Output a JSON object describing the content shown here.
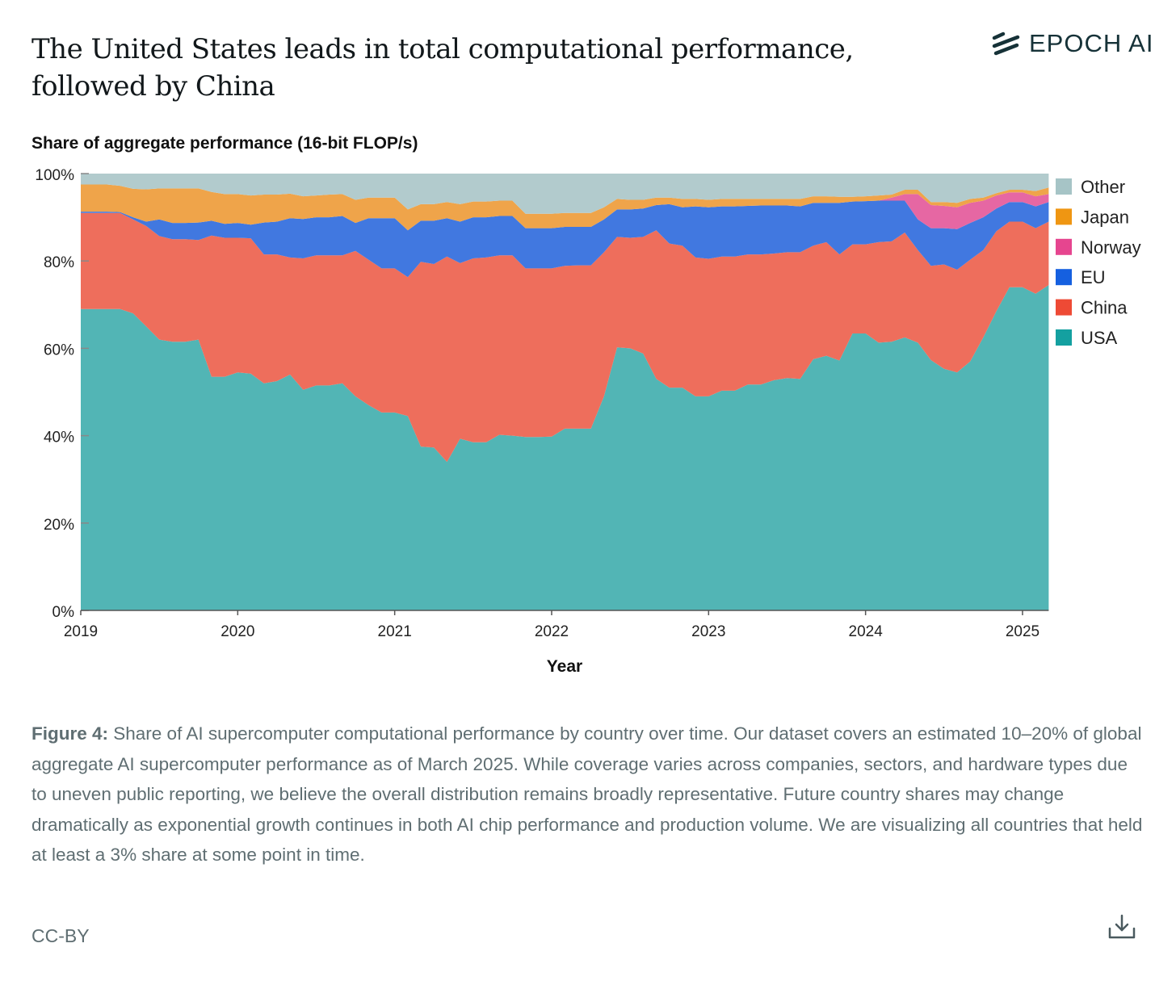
{
  "header": {
    "title": "The United States leads in total computational performance, followed by China",
    "logo_text": "EPOCH AI"
  },
  "caption": {
    "label": "Figure 4:",
    "text": " Share of AI supercomputer computational performance by country over time. Our dataset covers an estimated 10–20% of global aggregate AI supercomputer performance as of March 2025. While coverage varies across companies, sectors, and hardware types due to uneven public reporting, we believe the overall distribution remains broadly representative. Future country shares may change dramatically as exponential growth continues in both AI chip performance and production volume. We are visualizing all countries that held at least a 3% share at some point in time."
  },
  "footer": {
    "license": "CC-BY",
    "download_icon": "download-icon"
  },
  "chart_data": {
    "type": "area",
    "stacked": true,
    "title": "Share of aggregate performance (16-bit FLOP/s)",
    "xlabel": "Year",
    "ylabel": "Share of aggregate performance (16-bit FLOP/s)",
    "x_start": "2019-01",
    "x_step": "monthly",
    "xlim": [
      2019,
      2025.17
    ],
    "ylim": [
      0,
      100
    ],
    "x_ticks": [
      "2019",
      "2020",
      "2021",
      "2022",
      "2023",
      "2024",
      "2025"
    ],
    "y_ticks": [
      "0%",
      "20%",
      "40%",
      "60%",
      "80%",
      "100%"
    ],
    "legend_position": "right",
    "grid": false,
    "series": [
      {
        "name": "USA",
        "color": "#52b5b5",
        "legend_color": "#14a0a0",
        "values": [
          69,
          69,
          69,
          69,
          68,
          65,
          62,
          61.5,
          61.5,
          62,
          53.5,
          53.5,
          54.5,
          54.2,
          52,
          52.5,
          54,
          50.5,
          51.5,
          51.5,
          52,
          49,
          47,
          45.3,
          45.3,
          44.5,
          37.5,
          37.3,
          34,
          39.3,
          38.5,
          38.5,
          40.2,
          40,
          39.7,
          39.7,
          39.8,
          41.6,
          41.6,
          41.6,
          49,
          60.2,
          60,
          58.8,
          53,
          51,
          51,
          49,
          49,
          50.3,
          50.3,
          51.7,
          51.7,
          52.7,
          53.2,
          53,
          57.5,
          58.3,
          57.2,
          63.4,
          63.4,
          61.3,
          61.5,
          62.5,
          61.3,
          57.3,
          55.3,
          54.5,
          57,
          62.5,
          68.5,
          74,
          74,
          72.5,
          74.5
        ]
      },
      {
        "name": "China",
        "color": "#ee6e5c",
        "legend_color": "#ee4a35",
        "values": [
          22,
          22,
          22,
          22,
          21.5,
          23,
          23.7,
          23.5,
          23.5,
          22.8,
          32.3,
          31.8,
          30.8,
          31,
          29.5,
          29,
          26.8,
          30.1,
          29.8,
          29.8,
          29.3,
          33.3,
          33.3,
          33,
          33,
          31.8,
          42.3,
          42,
          47,
          40.2,
          42.1,
          42.3,
          41.1,
          41.3,
          38.6,
          38.6,
          38.5,
          37.3,
          37.4,
          37.4,
          33,
          25.3,
          25.3,
          26.7,
          34,
          33,
          32.5,
          31.8,
          31.5,
          30.7,
          30.7,
          29.8,
          29.8,
          29,
          28.8,
          29,
          26,
          26,
          24.3,
          20.4,
          20.4,
          23,
          23,
          24,
          21.2,
          21.6,
          23.9,
          23.5,
          23.3,
          20,
          18.3,
          15,
          15,
          15,
          14.5
        ]
      },
      {
        "name": "EU",
        "color": "#4178e0",
        "legend_color": "#1560e0",
        "values": [
          0.3,
          0.3,
          0.3,
          0.2,
          0.5,
          1,
          3.8,
          3.7,
          3.7,
          4,
          3.4,
          3.2,
          3.4,
          3.1,
          7.3,
          7.5,
          9,
          9,
          8.7,
          8.7,
          9,
          6.4,
          9.5,
          11.5,
          11.5,
          10.7,
          9.4,
          9.9,
          8.8,
          9.5,
          9.4,
          9.2,
          9,
          9,
          9.2,
          9.2,
          9.2,
          8.9,
          8.8,
          8.8,
          7.5,
          6.3,
          6.5,
          6.5,
          5.8,
          9,
          8.8,
          11.7,
          11.8,
          11.5,
          11.5,
          11.1,
          11.2,
          11,
          10.7,
          10.5,
          9.8,
          9,
          11.8,
          9.8,
          9.9,
          9.5,
          9.3,
          7.3,
          7,
          8.6,
          8.3,
          9.3,
          8.4,
          7.5,
          5.2,
          4.5,
          4.5,
          5,
          4.5
        ]
      },
      {
        "name": "Norway",
        "color": "#e667a3",
        "legend_color": "#e6458f",
        "values": [
          0,
          0,
          0,
          0,
          0,
          0,
          0,
          0,
          0,
          0,
          0,
          0,
          0,
          0,
          0,
          0,
          0,
          0,
          0,
          0,
          0,
          0,
          0,
          0,
          0,
          0,
          0,
          0,
          0,
          0,
          0,
          0,
          0,
          0,
          0,
          0,
          0,
          0,
          0,
          0,
          0,
          0,
          0,
          0,
          0,
          0,
          0,
          0,
          0,
          0,
          0,
          0,
          0,
          0,
          0,
          0,
          0,
          0,
          0,
          0,
          0,
          0,
          0.7,
          1.5,
          5.8,
          5.3,
          5.1,
          5,
          4.6,
          3.8,
          3,
          2.2,
          2.2,
          2.3,
          1.8
        ]
      },
      {
        "name": "Japan",
        "color": "#efa44a",
        "legend_color": "#ef9612",
        "values": [
          6.2,
          6.2,
          6.2,
          6,
          6.5,
          7.4,
          7.1,
          7.9,
          7.9,
          7.8,
          6.6,
          6.8,
          6.6,
          6.7,
          6.4,
          6.2,
          5.6,
          5.2,
          5,
          5.2,
          5,
          5.3,
          4.7,
          4.7,
          4.7,
          4.8,
          3.8,
          3.8,
          3.7,
          4,
          3.6,
          3.6,
          3.5,
          3.5,
          3.3,
          3.3,
          3.3,
          3.2,
          3.2,
          3.2,
          2.8,
          2.4,
          2.2,
          2,
          1.7,
          1.5,
          1.9,
          1.7,
          1.7,
          1.7,
          1.7,
          1.6,
          1.5,
          1.5,
          1.5,
          1.7,
          1.5,
          1.5,
          1.4,
          1.1,
          1.1,
          1.2,
          0.7,
          1,
          1,
          0.7,
          0.9,
          1,
          0.9,
          0.7,
          0.5,
          0.6,
          0.6,
          1.2,
          1.5
        ]
      },
      {
        "name": "Other",
        "color": "#b2cbcd",
        "legend_color": "#a6c4c6",
        "values": [
          2.5,
          2.5,
          2.5,
          2.8,
          3.5,
          3.6,
          3.4,
          3.4,
          3.4,
          3.4,
          4.2,
          4.7,
          4.7,
          5,
          4.8,
          4.8,
          4.6,
          5.2,
          5,
          4.8,
          4.7,
          6,
          5.5,
          5.5,
          5.5,
          8.2,
          7,
          7,
          6.5,
          7,
          6.4,
          6.4,
          6.2,
          6.2,
          9.2,
          9.2,
          9.2,
          9,
          9,
          9,
          7.7,
          5.8,
          6,
          6,
          5.5,
          5.5,
          5.8,
          5.8,
          6,
          5.8,
          5.8,
          5.8,
          5.8,
          5.8,
          5.8,
          5.8,
          5.2,
          5.2,
          5.3,
          5.3,
          5.2,
          5,
          4.8,
          3.7,
          3.7,
          6.5,
          6.5,
          6.7,
          5.8,
          5.5,
          4.5,
          3.7,
          3.7,
          4,
          3.2
        ]
      }
    ],
    "legend_order": [
      "Other",
      "Japan",
      "Norway",
      "EU",
      "China",
      "USA"
    ]
  }
}
